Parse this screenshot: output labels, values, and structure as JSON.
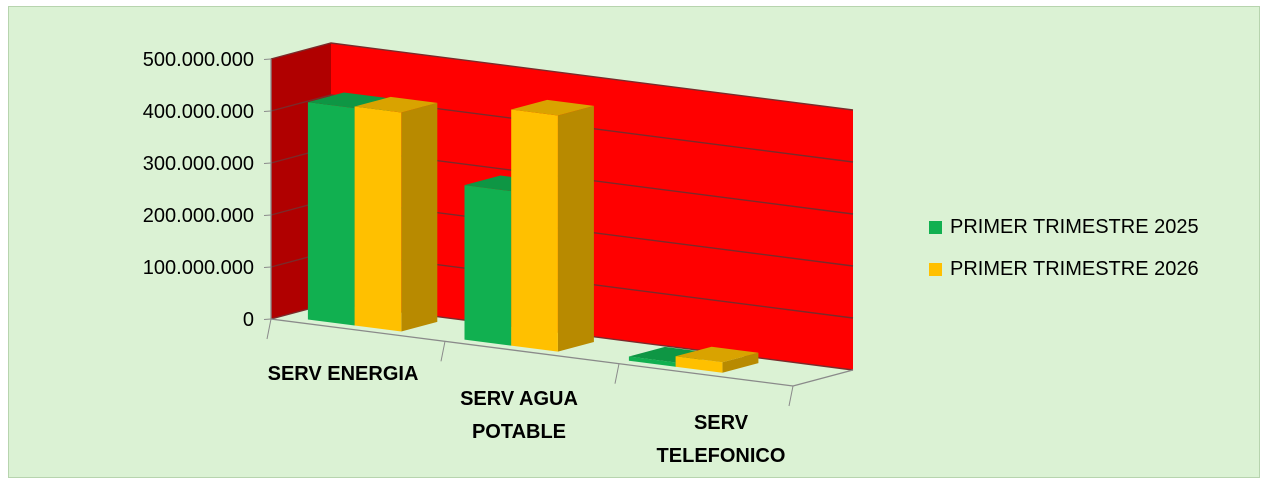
{
  "chart_data": {
    "type": "bar",
    "title": "",
    "xlabel": "",
    "ylabel": "",
    "categories": [
      [
        "SERV ENERGIA"
      ],
      [
        "SERV AGUA",
        "POTABLE"
      ],
      [
        "SERV",
        "TELEFONICO"
      ]
    ],
    "series": [
      {
        "name": "PRIMER TRIMESTRE 2025",
        "values": [
          418000000,
          297000000,
          8000000
        ],
        "color": "#11b050"
      },
      {
        "name": "PRIMER TRIMESTRE 2026",
        "values": [
          421000000,
          454000000,
          20000000
        ],
        "color": "#ffc000"
      }
    ],
    "y_ticks": [
      "0",
      "100.000.000",
      "200.000.000",
      "300.000.000",
      "400.000.000",
      "500.000.000"
    ],
    "ylim": [
      0,
      500000000
    ],
    "grid": true,
    "legend_position": "right",
    "style": "3d-clustered-column",
    "colors": {
      "chart_background": "#dbf2d4",
      "back_wall": "#ff0000",
      "side_wall": "#b00000",
      "gridline": "#7a2b2b"
    }
  }
}
